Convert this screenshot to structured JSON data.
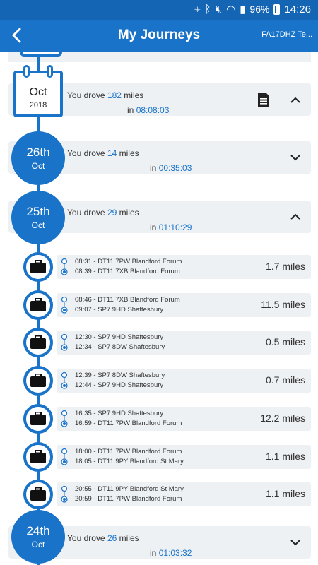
{
  "status": {
    "battery": "96%",
    "time": "14:26"
  },
  "appbar": {
    "title": "My Journeys",
    "vehicle": "FA17DHZ Te..."
  },
  "month": {
    "month": "Oct",
    "year": "2018",
    "drove_prefix": "You drove ",
    "miles": "182",
    "drove_suffix": " miles",
    "in": "in ",
    "duration": "08:08:03"
  },
  "days": [
    {
      "day": "26th",
      "month": "Oct",
      "drove_prefix": "You drove ",
      "miles": "14",
      "drove_suffix": " miles",
      "in": "in ",
      "duration": "00:35:03"
    },
    {
      "day": "25th",
      "month": "Oct",
      "drove_prefix": "You drove ",
      "miles": "29",
      "drove_suffix": " miles",
      "in": "in ",
      "duration": "01:10:29"
    },
    {
      "day": "24th",
      "month": "Oct",
      "drove_prefix": "You drove ",
      "miles": "26",
      "drove_suffix": " miles",
      "in": "in ",
      "duration": "01:03:32"
    }
  ],
  "trips": [
    {
      "start": "08:31 - DT11 7PW Blandford Forum",
      "end": "08:39 - DT11 7XB Blandford Forum",
      "distance": "1.7 miles"
    },
    {
      "start": "08:46 - DT11 7XB Blandford Forum",
      "end": "09:07 - SP7 9HD Shaftesbury",
      "distance": "11.5 miles"
    },
    {
      "start": "12:30 - SP7 9HD Shaftesbury",
      "end": "12:34 - SP7 8DW Shaftesbury",
      "distance": "0.5 miles"
    },
    {
      "start": "12:39 - SP7 8DW Shaftesbury",
      "end": "12:44 - SP7 9HD Shaftesbury",
      "distance": "0.7 miles"
    },
    {
      "start": "16:35 - SP7 9HD Shaftesbury",
      "end": "16:59 - DT11 7PW Blandford Forum",
      "distance": "12.2 miles"
    },
    {
      "start": "18:00 - DT11 7PW Blandford Forum",
      "end": "18:05 - DT11 9PY Blandford St Mary",
      "distance": "1.1 miles"
    },
    {
      "start": "20:55 - DT11 9PY Blandford St Mary",
      "end": "20:59 - DT11 7PW Blandford Forum",
      "distance": "1.1 miles"
    }
  ]
}
